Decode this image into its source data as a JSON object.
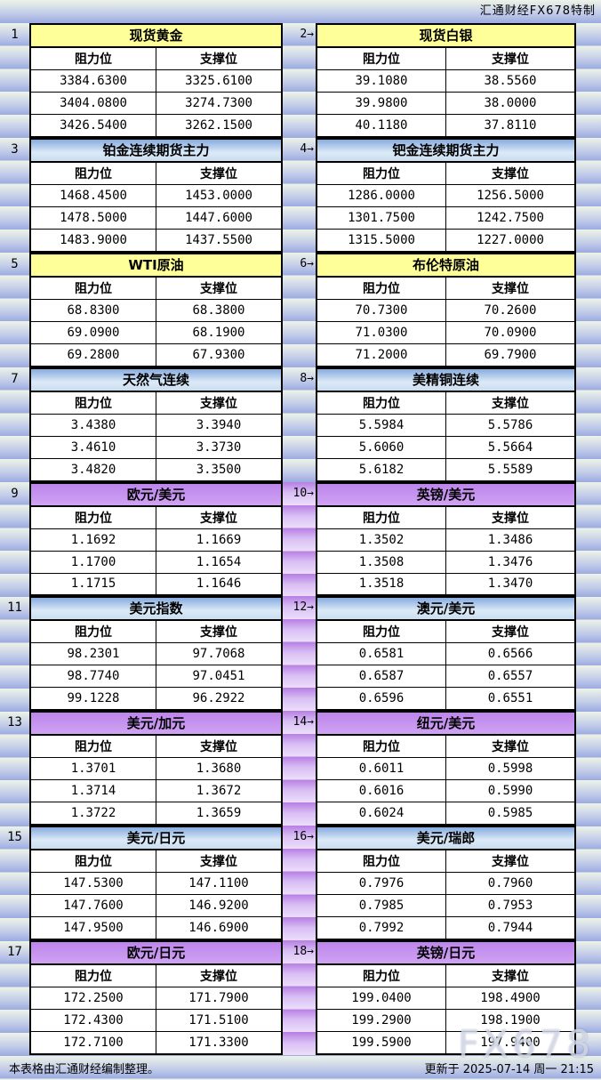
{
  "title": "汇通财经FX678特制",
  "watermark": "FX678",
  "footer": {
    "left": "本表格由汇通财经编制整理。",
    "right": "更新于 2025-07-14 周一 21:15"
  },
  "columns": {
    "resistance": "阻力位",
    "support": "支撑位"
  },
  "colors": {
    "header_yellow": "#ffff99",
    "header_blue_top": "#86abdf",
    "header_blue_bottom": "#c9ddf0",
    "header_purple": "#bd85ec",
    "stripe_pale": "#edf3e7",
    "stripe_blue": "#9cabe1",
    "stripe_purple_dark": "#b77ee4",
    "stripe_purple_pale": "#ecdefa",
    "cell_bg": "#ffffff",
    "border": "#000000"
  },
  "pairs": [
    {
      "divider": "blue",
      "left": {
        "num": "1",
        "title": "现货黄金",
        "style": "yellow",
        "rows": [
          [
            "3384.6300",
            "3325.6100"
          ],
          [
            "3404.0800",
            "3274.7300"
          ],
          [
            "3426.5400",
            "3262.1500"
          ]
        ]
      },
      "right": {
        "num": "2→",
        "title": "现货白银",
        "style": "yellow",
        "rows": [
          [
            "39.1080",
            "38.5560"
          ],
          [
            "39.9800",
            "38.0000"
          ],
          [
            "40.1180",
            "37.8110"
          ]
        ]
      }
    },
    {
      "divider": "blue",
      "left": {
        "num": "3",
        "title": "铂金连续期货主力",
        "style": "blue",
        "rows": [
          [
            "1468.4500",
            "1453.0000"
          ],
          [
            "1478.5000",
            "1447.6000"
          ],
          [
            "1483.9000",
            "1437.5500"
          ]
        ]
      },
      "right": {
        "num": "4→",
        "title": "钯金连续期货主力",
        "style": "blue",
        "rows": [
          [
            "1286.0000",
            "1256.5000"
          ],
          [
            "1301.7500",
            "1242.7500"
          ],
          [
            "1315.5000",
            "1227.0000"
          ]
        ]
      }
    },
    {
      "divider": "blue",
      "left": {
        "num": "5",
        "title": "WTI原油",
        "style": "yellow",
        "rows": [
          [
            "68.8300",
            "68.3800"
          ],
          [
            "69.0900",
            "68.1900"
          ],
          [
            "69.2800",
            "67.9300"
          ]
        ]
      },
      "right": {
        "num": "6→",
        "title": "布伦特原油",
        "style": "yellow",
        "rows": [
          [
            "70.7300",
            "70.2600"
          ],
          [
            "71.0300",
            "70.0900"
          ],
          [
            "71.2000",
            "69.7900"
          ]
        ]
      }
    },
    {
      "divider": "blue",
      "left": {
        "num": "7",
        "title": "天然气连续",
        "style": "blue",
        "rows": [
          [
            "3.4380",
            "3.3940"
          ],
          [
            "3.4610",
            "3.3730"
          ],
          [
            "3.4820",
            "3.3500"
          ]
        ]
      },
      "right": {
        "num": "8→",
        "title": "美精铜连续",
        "style": "blue",
        "rows": [
          [
            "5.5984",
            "5.5786"
          ],
          [
            "5.6060",
            "5.5664"
          ],
          [
            "5.6182",
            "5.5589"
          ]
        ]
      }
    },
    {
      "divider": "purple",
      "left": {
        "num": "9",
        "title": "欧元/美元",
        "style": "purple",
        "rows": [
          [
            "1.1692",
            "1.1669"
          ],
          [
            "1.1700",
            "1.1654"
          ],
          [
            "1.1715",
            "1.1646"
          ]
        ]
      },
      "right": {
        "num": "10→",
        "title": "英镑/美元",
        "style": "purple",
        "rows": [
          [
            "1.3502",
            "1.3486"
          ],
          [
            "1.3508",
            "1.3476"
          ],
          [
            "1.3518",
            "1.3470"
          ]
        ]
      }
    },
    {
      "divider": "purple",
      "left": {
        "num": "11",
        "title": "美元指数",
        "style": "blue",
        "rows": [
          [
            "98.2301",
            "97.7068"
          ],
          [
            "98.7740",
            "97.0451"
          ],
          [
            "99.1228",
            "96.2922"
          ]
        ]
      },
      "right": {
        "num": "12→",
        "title": "澳元/美元",
        "style": "blue",
        "rows": [
          [
            "0.6581",
            "0.6566"
          ],
          [
            "0.6587",
            "0.6557"
          ],
          [
            "0.6596",
            "0.6551"
          ]
        ]
      }
    },
    {
      "divider": "purple",
      "left": {
        "num": "13",
        "title": "美元/加元",
        "style": "purple",
        "rows": [
          [
            "1.3701",
            "1.3680"
          ],
          [
            "1.3714",
            "1.3672"
          ],
          [
            "1.3722",
            "1.3659"
          ]
        ]
      },
      "right": {
        "num": "14→",
        "title": "纽元/美元",
        "style": "purple",
        "rows": [
          [
            "0.6011",
            "0.5998"
          ],
          [
            "0.6016",
            "0.5990"
          ],
          [
            "0.6024",
            "0.5985"
          ]
        ]
      }
    },
    {
      "divider": "purple",
      "left": {
        "num": "15",
        "title": "美元/日元",
        "style": "blue",
        "rows": [
          [
            "147.5300",
            "147.1100"
          ],
          [
            "147.7600",
            "146.9200"
          ],
          [
            "147.9500",
            "146.6900"
          ]
        ]
      },
      "right": {
        "num": "16→",
        "title": "美元/瑞郎",
        "style": "blue",
        "rows": [
          [
            "0.7976",
            "0.7960"
          ],
          [
            "0.7985",
            "0.7953"
          ],
          [
            "0.7992",
            "0.7944"
          ]
        ]
      }
    },
    {
      "divider": "purple",
      "left": {
        "num": "17",
        "title": "欧元/日元",
        "style": "purple",
        "rows": [
          [
            "172.2500",
            "171.7900"
          ],
          [
            "172.4300",
            "171.5100"
          ],
          [
            "172.7100",
            "171.3300"
          ]
        ]
      },
      "right": {
        "num": "18→",
        "title": "英镑/日元",
        "style": "purple",
        "rows": [
          [
            "199.0400",
            "198.4900"
          ],
          [
            "199.2900",
            "198.1900"
          ],
          [
            "199.5900",
            "197.9400"
          ]
        ]
      }
    }
  ]
}
